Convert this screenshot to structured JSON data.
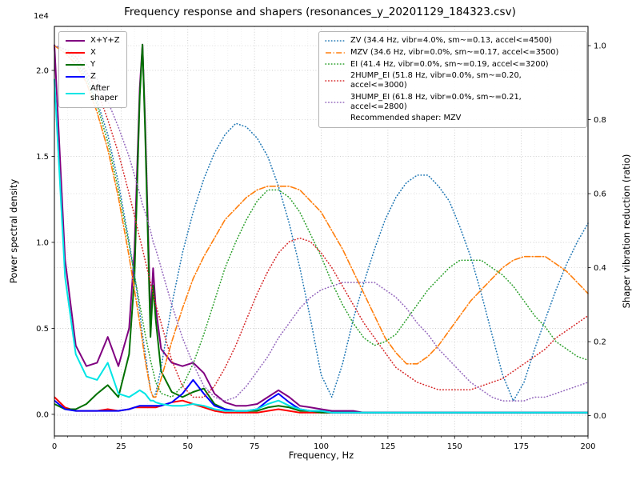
{
  "chart_data": {
    "type": "line",
    "title": "Frequency response and shapers (resonances_y_20201129_184323.csv)",
    "xlabel": "Frequency, Hz",
    "ylabel_left": "Power spectral density",
    "ylabel_right": "Shaper vibration reduction (ratio)",
    "offset_text": "1e4",
    "psd_unit_multiplier": 10000,
    "xlim": [
      0,
      200
    ],
    "ylim_left": [
      -0.126,
      2.256
    ],
    "ylim_right": [
      -0.055,
      1.052
    ],
    "xticks": [
      0,
      25,
      50,
      75,
      100,
      125,
      150,
      175,
      200
    ],
    "xtick_labels": [
      "0",
      "25",
      "50",
      "75",
      "100",
      "125",
      "150",
      "175",
      "200"
    ],
    "yticks_left": [
      0.0,
      0.5,
      1.0,
      1.5,
      2.0
    ],
    "ytick_labels_left": [
      "0.0",
      "0.5",
      "1.0",
      "1.5",
      "2.0"
    ],
    "yticks_right": [
      0.0,
      0.2,
      0.4,
      0.6,
      0.8,
      1.0
    ],
    "ytick_labels_right": [
      "0.0",
      "0.2",
      "0.4",
      "0.6",
      "0.8",
      "1.0"
    ],
    "grid": true,
    "legend_left_position": "upper left",
    "legend_right_position": "upper right",
    "recommendation": "Recommended shaper: MZV",
    "x": [
      0,
      4,
      8,
      12,
      16,
      20,
      24,
      28,
      30,
      32,
      33,
      34,
      36,
      37,
      38,
      40,
      44,
      48,
      52,
      56,
      60,
      64,
      68,
      72,
      76,
      80,
      84,
      88,
      92,
      96,
      100,
      104,
      108,
      112,
      116,
      120,
      124,
      128,
      132,
      136,
      140,
      144,
      148,
      152,
      156,
      160,
      164,
      168,
      172,
      176,
      180,
      184,
      188,
      192,
      196,
      200
    ],
    "psd_series": [
      {
        "name": "x+y+z",
        "label": "X+Y+Z",
        "color": "#800080",
        "values": [
          2.15,
          0.9,
          0.4,
          0.28,
          0.3,
          0.45,
          0.28,
          0.5,
          0.95,
          1.9,
          2.15,
          1.7,
          0.55,
          0.85,
          0.62,
          0.38,
          0.3,
          0.28,
          0.3,
          0.24,
          0.12,
          0.07,
          0.05,
          0.05,
          0.06,
          0.1,
          0.14,
          0.1,
          0.05,
          0.04,
          0.03,
          0.02,
          0.02,
          0.02,
          0.01,
          0.01,
          0.01,
          0.01,
          0.01,
          0.01,
          0.01,
          0.01,
          0.01,
          0.01,
          0.01,
          0.01,
          0.01,
          0.01,
          0.01,
          0.01,
          0.01,
          0.01,
          0.01,
          0.01,
          0.01,
          0.01
        ]
      },
      {
        "name": "x",
        "label": "X",
        "color": "#ff0000",
        "values": [
          0.1,
          0.04,
          0.02,
          0.02,
          0.02,
          0.03,
          0.02,
          0.03,
          0.04,
          0.04,
          0.04,
          0.04,
          0.04,
          0.04,
          0.04,
          0.05,
          0.07,
          0.08,
          0.06,
          0.04,
          0.02,
          0.01,
          0.01,
          0.01,
          0.01,
          0.02,
          0.03,
          0.02,
          0.01,
          0.01,
          0.01,
          0.01,
          0.01,
          0.01,
          0.01,
          0.01,
          0.01,
          0.01,
          0.01,
          0.01,
          0.01,
          0.01,
          0.01,
          0.01,
          0.01,
          0.01,
          0.01,
          0.01,
          0.01,
          0.01,
          0.01,
          0.01,
          0.01,
          0.01,
          0.01,
          0.01
        ]
      },
      {
        "name": "y",
        "label": "Y",
        "color": "#007000",
        "values": [
          0.06,
          0.03,
          0.03,
          0.06,
          0.12,
          0.17,
          0.1,
          0.35,
          0.8,
          1.85,
          2.15,
          1.65,
          0.45,
          0.75,
          0.55,
          0.25,
          0.13,
          0.1,
          0.13,
          0.15,
          0.06,
          0.03,
          0.02,
          0.02,
          0.02,
          0.04,
          0.05,
          0.04,
          0.02,
          0.02,
          0.01,
          0.01,
          0.01,
          0.01,
          0.01,
          0.01,
          0.01,
          0.01,
          0.01,
          0.01,
          0.01,
          0.01,
          0.01,
          0.01,
          0.01,
          0.01,
          0.01,
          0.01,
          0.01,
          0.01,
          0.01,
          0.01,
          0.01,
          0.01,
          0.01,
          0.01
        ]
      },
      {
        "name": "z",
        "label": "Z",
        "color": "#0000ff",
        "values": [
          0.08,
          0.03,
          0.02,
          0.02,
          0.02,
          0.02,
          0.02,
          0.03,
          0.04,
          0.05,
          0.05,
          0.05,
          0.05,
          0.05,
          0.05,
          0.05,
          0.07,
          0.12,
          0.2,
          0.12,
          0.05,
          0.03,
          0.02,
          0.02,
          0.03,
          0.08,
          0.12,
          0.07,
          0.03,
          0.02,
          0.02,
          0.01,
          0.01,
          0.01,
          0.01,
          0.01,
          0.01,
          0.01,
          0.01,
          0.01,
          0.01,
          0.01,
          0.01,
          0.01,
          0.01,
          0.01,
          0.01,
          0.01,
          0.01,
          0.01,
          0.01,
          0.01,
          0.01,
          0.01,
          0.01,
          0.01
        ]
      },
      {
        "name": "after-shaper",
        "label": "After\nshaper",
        "color": "#00e5e5",
        "values": [
          1.95,
          0.8,
          0.35,
          0.22,
          0.2,
          0.3,
          0.12,
          0.1,
          0.12,
          0.14,
          0.13,
          0.12,
          0.08,
          0.08,
          0.07,
          0.06,
          0.05,
          0.05,
          0.06,
          0.05,
          0.03,
          0.02,
          0.02,
          0.02,
          0.03,
          0.06,
          0.08,
          0.05,
          0.03,
          0.02,
          0.02,
          0.01,
          0.01,
          0.01,
          0.01,
          0.01,
          0.01,
          0.01,
          0.01,
          0.01,
          0.01,
          0.01,
          0.01,
          0.01,
          0.01,
          0.01,
          0.01,
          0.01,
          0.01,
          0.01,
          0.01,
          0.01,
          0.01,
          0.01,
          0.01,
          0.01
        ]
      }
    ],
    "shaper_series": [
      {
        "name": "zv",
        "label": "ZV (34.4 Hz, vibr=4.0%, sm~=0.13, accel<=4500)",
        "color": "#1f77b4",
        "style": "dotted",
        "values": [
          1.0,
          0.99,
          0.97,
          0.92,
          0.85,
          0.76,
          0.63,
          0.47,
          0.38,
          0.28,
          0.22,
          0.17,
          0.07,
          0.05,
          0.06,
          0.13,
          0.3,
          0.44,
          0.55,
          0.64,
          0.71,
          0.76,
          0.79,
          0.78,
          0.75,
          0.7,
          0.62,
          0.52,
          0.4,
          0.26,
          0.11,
          0.05,
          0.14,
          0.26,
          0.36,
          0.45,
          0.53,
          0.59,
          0.63,
          0.65,
          0.65,
          0.62,
          0.58,
          0.51,
          0.43,
          0.33,
          0.22,
          0.11,
          0.04,
          0.09,
          0.18,
          0.26,
          0.34,
          0.41,
          0.47,
          0.52
        ]
      },
      {
        "name": "mzv",
        "label": "MZV (34.6 Hz, vibr=0.0%, sm~=0.17, accel<=3500)",
        "color": "#ff7f0e",
        "style": "dashdot",
        "values": [
          1.0,
          0.98,
          0.95,
          0.9,
          0.82,
          0.72,
          0.59,
          0.43,
          0.34,
          0.25,
          0.2,
          0.15,
          0.07,
          0.05,
          0.05,
          0.1,
          0.2,
          0.29,
          0.37,
          0.43,
          0.48,
          0.53,
          0.56,
          0.59,
          0.61,
          0.62,
          0.62,
          0.62,
          0.61,
          0.58,
          0.55,
          0.5,
          0.45,
          0.39,
          0.33,
          0.27,
          0.21,
          0.17,
          0.14,
          0.14,
          0.16,
          0.19,
          0.23,
          0.27,
          0.31,
          0.34,
          0.37,
          0.4,
          0.42,
          0.43,
          0.43,
          0.43,
          0.41,
          0.39,
          0.36,
          0.33
        ]
      },
      {
        "name": "ei",
        "label": "EI (41.4 Hz, vibr=0.0%, sm~=0.19, accel<=3200)",
        "color": "#2ca02c",
        "style": "dotted",
        "values": [
          1.0,
          0.99,
          0.96,
          0.91,
          0.84,
          0.74,
          0.61,
          0.46,
          0.38,
          0.3,
          0.26,
          0.22,
          0.15,
          0.12,
          0.09,
          0.06,
          0.05,
          0.08,
          0.14,
          0.22,
          0.31,
          0.4,
          0.47,
          0.53,
          0.58,
          0.61,
          0.61,
          0.59,
          0.55,
          0.49,
          0.43,
          0.36,
          0.3,
          0.25,
          0.21,
          0.19,
          0.2,
          0.22,
          0.26,
          0.3,
          0.34,
          0.37,
          0.4,
          0.42,
          0.42,
          0.42,
          0.4,
          0.38,
          0.35,
          0.31,
          0.27,
          0.24,
          0.2,
          0.18,
          0.16,
          0.15
        ]
      },
      {
        "name": "2hump_ei",
        "label": "2HUMP_EI (51.8 Hz, vibr=0.0%, sm~=0.20, accel<=3000)",
        "color": "#d62728",
        "style": "dotted",
        "values": [
          1.0,
          0.99,
          0.97,
          0.93,
          0.88,
          0.8,
          0.71,
          0.6,
          0.54,
          0.48,
          0.45,
          0.42,
          0.36,
          0.33,
          0.3,
          0.25,
          0.15,
          0.08,
          0.05,
          0.05,
          0.08,
          0.13,
          0.19,
          0.26,
          0.33,
          0.39,
          0.44,
          0.47,
          0.48,
          0.47,
          0.44,
          0.4,
          0.35,
          0.3,
          0.25,
          0.21,
          0.17,
          0.13,
          0.11,
          0.09,
          0.08,
          0.07,
          0.07,
          0.07,
          0.07,
          0.08,
          0.09,
          0.1,
          0.12,
          0.14,
          0.16,
          0.18,
          0.21,
          0.23,
          0.25,
          0.27
        ]
      },
      {
        "name": "3hump_ei",
        "label": "3HUMP_EI (61.8 Hz, vibr=0.0%, sm~=0.21, accel<=2800)",
        "color": "#9467bd",
        "style": "dotted",
        "values": [
          1.0,
          0.99,
          0.98,
          0.95,
          0.91,
          0.85,
          0.78,
          0.7,
          0.65,
          0.6,
          0.57,
          0.55,
          0.5,
          0.47,
          0.45,
          0.4,
          0.3,
          0.21,
          0.14,
          0.08,
          0.05,
          0.04,
          0.05,
          0.08,
          0.12,
          0.16,
          0.21,
          0.25,
          0.29,
          0.32,
          0.34,
          0.35,
          0.36,
          0.36,
          0.36,
          0.36,
          0.34,
          0.32,
          0.29,
          0.25,
          0.22,
          0.18,
          0.15,
          0.12,
          0.09,
          0.07,
          0.05,
          0.04,
          0.04,
          0.04,
          0.05,
          0.05,
          0.06,
          0.07,
          0.08,
          0.09
        ]
      }
    ]
  }
}
